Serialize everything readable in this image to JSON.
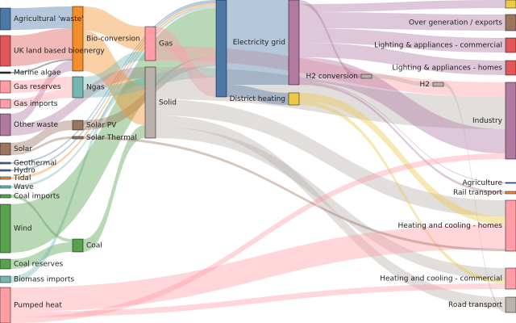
{
  "chart_data": {
    "type": "sankey",
    "nodes": [
      {
        "name": "Agricultural 'waste'",
        "color": "#4e79a7"
      },
      {
        "name": "UK land based bioenergy",
        "color": "#e15759"
      },
      {
        "name": "Marine algae",
        "color": "#333333"
      },
      {
        "name": "Gas reserves",
        "color": "#ff9da7"
      },
      {
        "name": "Gas imports",
        "color": "#ff9da7"
      },
      {
        "name": "Other waste",
        "color": "#b07aa1"
      },
      {
        "name": "Solar",
        "color": "#9c755f"
      },
      {
        "name": "Geothermal",
        "color": "#4e79a7"
      },
      {
        "name": "Hydro",
        "color": "#4e79a7"
      },
      {
        "name": "Tidal",
        "color": "#f28e2b"
      },
      {
        "name": "Wave",
        "color": "#76b7b2"
      },
      {
        "name": "Coal imports",
        "color": "#59a14f"
      },
      {
        "name": "Wind",
        "color": "#59a14f"
      },
      {
        "name": "Coal reserves",
        "color": "#59a14f"
      },
      {
        "name": "Biomass imports",
        "color": "#76b7b2"
      },
      {
        "name": "Pumped heat",
        "color": "#ff9da7"
      },
      {
        "name": "Bio-conversion",
        "color": "#f28e2b"
      },
      {
        "name": "Ngas",
        "color": "#76b7b2"
      },
      {
        "name": "Solar PV",
        "color": "#9c755f"
      },
      {
        "name": "Solar Thermal",
        "color": "#9c755f"
      },
      {
        "name": "Coal",
        "color": "#59a14f"
      },
      {
        "name": "Gas",
        "color": "#ff9da7"
      },
      {
        "name": "Solid",
        "color": "#bab0ac"
      },
      {
        "name": null,
        "color": "#4e79a7"
      },
      {
        "name": "Electricity grid",
        "color": "#b07aa1"
      },
      {
        "name": "District heating",
        "color": "#edc948"
      },
      {
        "name": "H2 conversion",
        "color": "#bab0ac"
      },
      {
        "name": "H2",
        "color": "#bab0ac"
      },
      {
        "name": null,
        "color": "#edc948"
      },
      {
        "name": "Over generation / exports",
        "color": "#9c755f"
      },
      {
        "name": "Lighting & appliances - commercial",
        "color": "#e15759"
      },
      {
        "name": "Lighting & appliances - homes",
        "color": "#e15759"
      },
      {
        "name": "Industry",
        "color": "#b07aa1"
      },
      {
        "name": "Agriculture",
        "color": "#4e79a7"
      },
      {
        "name": "Rail transport",
        "color": "#f28e2b"
      },
      {
        "name": "Heating and cooling - homes",
        "color": "#ff9da7"
      },
      {
        "name": "Heating and cooling - commercial",
        "color": "#ff9da7"
      },
      {
        "name": "Road transport",
        "color": "#bab0ac"
      }
    ],
    "links": [
      {
        "source": 0,
        "target": 16,
        "value": 27
      },
      {
        "source": 1,
        "target": 16,
        "value": 38
      },
      {
        "source": 2,
        "target": 16,
        "value": 2
      },
      {
        "source": 5,
        "target": 16,
        "value": 13
      },
      {
        "source": 5,
        "target": 22,
        "value": 14
      },
      {
        "source": 3,
        "target": 17,
        "value": 15
      },
      {
        "source": 4,
        "target": 17,
        "value": 11
      },
      {
        "source": 6,
        "target": 18,
        "value": 12
      },
      {
        "source": 6,
        "target": 19,
        "value": 3
      },
      {
        "source": 11,
        "target": 20,
        "value": 4
      },
      {
        "source": 13,
        "target": 20,
        "value": 12
      },
      {
        "source": 14,
        "target": 22,
        "value": 8
      },
      {
        "source": 7,
        "target": 23,
        "value": 2
      },
      {
        "source": 8,
        "target": 23,
        "value": 2
      },
      {
        "source": 9,
        "target": 23,
        "value": 3
      },
      {
        "source": 10,
        "target": 23,
        "value": 3
      },
      {
        "source": 12,
        "target": 23,
        "value": 60
      },
      {
        "source": 18,
        "target": 23,
        "value": 12
      },
      {
        "source": 16,
        "target": 21,
        "value": 30
      },
      {
        "source": 16,
        "target": 22,
        "value": 50
      },
      {
        "source": 17,
        "target": 21,
        "value": 12
      },
      {
        "source": 17,
        "target": 23,
        "value": 14
      },
      {
        "source": 20,
        "target": 22,
        "value": 16
      },
      {
        "source": 21,
        "target": 23,
        "value": 24
      },
      {
        "source": 21,
        "target": 32,
        "value": 18
      },
      {
        "source": 22,
        "target": 32,
        "value": 40
      },
      {
        "source": 22,
        "target": 35,
        "value": 20
      },
      {
        "source": 22,
        "target": 37,
        "value": 14
      },
      {
        "source": 22,
        "target": 36,
        "value": 14
      },
      {
        "source": 23,
        "target": 24,
        "value": 105
      },
      {
        "source": 23,
        "target": 25,
        "value": 15
      },
      {
        "source": 24,
        "target": 26,
        "value": 5
      },
      {
        "source": 24,
        "target": 28,
        "value": 10
      },
      {
        "source": 24,
        "target": 29,
        "value": 20
      },
      {
        "source": 24,
        "target": 30,
        "value": 18
      },
      {
        "source": 24,
        "target": 31,
        "value": 18
      },
      {
        "source": 24,
        "target": 32,
        "value": 30
      },
      {
        "source": 24,
        "target": 33,
        "value": 1
      },
      {
        "source": 24,
        "target": 34,
        "value": 3
      },
      {
        "source": 25,
        "target": 35,
        "value": 10
      },
      {
        "source": 25,
        "target": 36,
        "value": 5
      },
      {
        "source": 26,
        "target": 27,
        "value": 5
      },
      {
        "source": 27,
        "target": 37,
        "value": 5
      },
      {
        "source": 15,
        "target": 35,
        "value": 30
      },
      {
        "source": 15,
        "target": 36,
        "value": 7
      },
      {
        "source": 15,
        "target": 32,
        "value": 7
      },
      {
        "source": 19,
        "target": 35,
        "value": 3
      }
    ]
  }
}
